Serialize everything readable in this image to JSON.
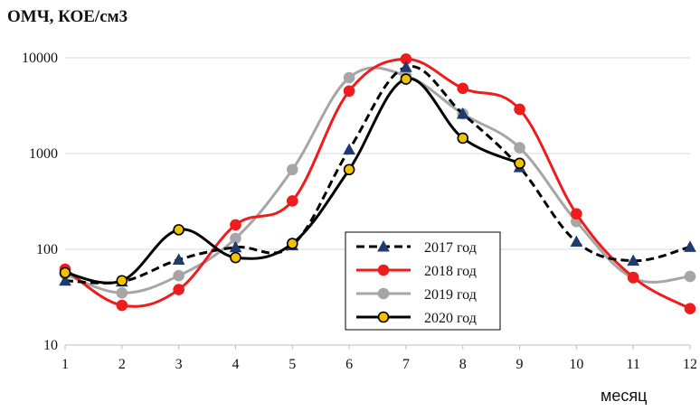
{
  "chart_data": {
    "type": "line",
    "title": "ОМЧ, КОЕ/см3",
    "xlabel": "месяц",
    "ylabel": "",
    "y_scale": "log",
    "ylim": [
      10,
      10000
    ],
    "xlim": [
      1,
      12
    ],
    "grid": "horizontal",
    "legend_position": "bottom-right inside plot",
    "x": [
      1,
      2,
      3,
      4,
      5,
      6,
      7,
      8,
      9,
      10,
      11,
      12
    ],
    "x_tick_labels": [
      "1",
      "2",
      "3",
      "4",
      "5",
      "6",
      "7",
      "8",
      "9",
      "10",
      "11",
      "12"
    ],
    "y_tick_labels": [
      "10",
      "100",
      "1000",
      "10000"
    ],
    "series": [
      {
        "name": "2017 год",
        "color": "#000000",
        "line_style": "dashed",
        "marker": "triangle",
        "marker_color": "#1f3a6e",
        "values": [
          47,
          46,
          78,
          105,
          110,
          1100,
          8000,
          2600,
          720,
          120,
          76,
          106
        ]
      },
      {
        "name": "2018 год",
        "color": "#ee1c1c",
        "line_style": "solid",
        "marker": "circle",
        "marker_color": "#ee1c1c",
        "values": [
          62,
          26,
          38,
          180,
          320,
          4500,
          9700,
          4800,
          2900,
          235,
          51,
          24
        ]
      },
      {
        "name": "2019 год",
        "color": "#a6a6a6",
        "line_style": "solid",
        "marker": "circle",
        "marker_color": "#a6a6a6",
        "values": [
          55,
          35,
          53,
          130,
          680,
          6200,
          6500,
          2600,
          1150,
          195,
          50,
          52
        ]
      },
      {
        "name": "2020 год",
        "color": "#000000",
        "line_style": "solid",
        "marker": "circle",
        "marker_color": "#f2c200",
        "values": [
          57,
          47,
          160,
          82,
          115,
          680,
          6000,
          1450,
          790,
          0,
          0,
          0
        ],
        "months_present": [
          1,
          2,
          3,
          4,
          5,
          6,
          7,
          8,
          9
        ]
      }
    ]
  }
}
